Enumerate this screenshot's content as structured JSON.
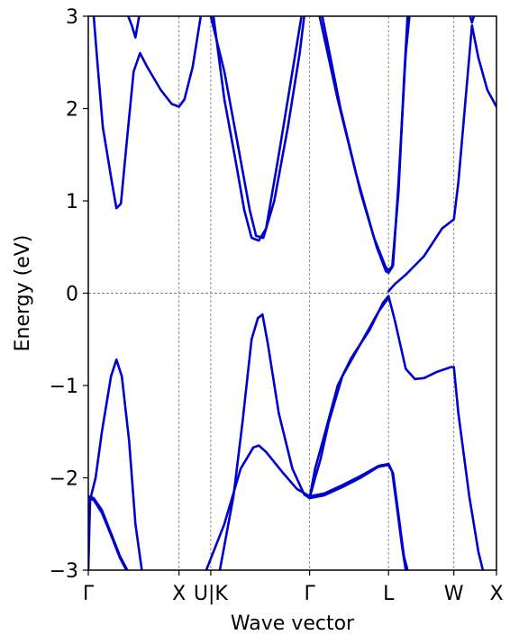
{
  "chart_data": {
    "type": "line",
    "title": "",
    "xlabel": "Wave vector",
    "ylabel": "Energy (eV)",
    "ylim": [
      -3,
      3
    ],
    "yticks": [
      -3,
      -2,
      -1,
      0,
      1,
      2,
      3
    ],
    "ytick_labels": [
      "−3",
      "−2",
      "−1",
      "0",
      "1",
      "2",
      "3"
    ],
    "xlim": [
      0,
      4.5
    ],
    "xticks": [
      {
        "label": "Γ",
        "x": 0.0
      },
      {
        "label": "X",
        "x": 1.0
      },
      {
        "label": "U|K",
        "x": 1.35
      },
      {
        "label": "Γ",
        "x": 2.44
      },
      {
        "label": "L",
        "x": 3.31
      },
      {
        "label": "W",
        "x": 4.03
      },
      {
        "label": "X",
        "x": 4.5
      }
    ],
    "fermi_level": 0,
    "grid": "vertical dashed lines at high-symmetry points",
    "line_color": "#0000cc",
    "guide_color": "#808080",
    "series": [
      {
        "points": [
          [
            0.0,
            -3.0
          ],
          [
            0.02,
            -2.24
          ],
          [
            0.08,
            -2.0
          ],
          [
            0.15,
            -1.5
          ],
          [
            0.25,
            -0.9
          ],
          [
            0.31,
            -0.72
          ],
          [
            0.37,
            -0.9
          ],
          [
            0.45,
            -1.6
          ],
          [
            0.52,
            -2.5
          ],
          [
            0.59,
            -3.0
          ]
        ]
      },
      {
        "points": [
          [
            0.0,
            -2.2
          ],
          [
            0.06,
            -2.22
          ],
          [
            0.15,
            -2.35
          ],
          [
            0.25,
            -2.6
          ],
          [
            0.35,
            -2.85
          ],
          [
            0.43,
            -3.0
          ]
        ]
      },
      {
        "points": [
          [
            0.0,
            -2.22
          ],
          [
            0.06,
            -2.24
          ],
          [
            0.15,
            -2.38
          ],
          [
            0.25,
            -2.62
          ],
          [
            0.35,
            -2.87
          ],
          [
            0.42,
            -3.0
          ]
        ]
      },
      {
        "points": [
          [
            0.06,
            3.0
          ],
          [
            0.1,
            2.5
          ],
          [
            0.16,
            1.8
          ],
          [
            0.26,
            1.2
          ],
          [
            0.31,
            0.92
          ],
          [
            0.36,
            0.97
          ],
          [
            0.42,
            1.6
          ],
          [
            0.5,
            2.4
          ],
          [
            0.57,
            2.6
          ],
          [
            0.65,
            2.45
          ],
          [
            0.8,
            2.2
          ],
          [
            0.92,
            2.05
          ],
          [
            1.0,
            2.02
          ],
          [
            1.06,
            2.1
          ],
          [
            1.15,
            2.45
          ],
          [
            1.24,
            3.0
          ]
        ]
      },
      {
        "points": [
          [
            0.44,
            3.0
          ],
          [
            0.48,
            2.9
          ],
          [
            0.52,
            2.77
          ],
          [
            0.56,
            3.0
          ]
        ]
      },
      {
        "points": [
          [
            1.3,
            -3.0
          ],
          [
            1.5,
            -2.5
          ],
          [
            1.68,
            -1.9
          ],
          [
            1.82,
            -1.67
          ],
          [
            1.88,
            -1.65
          ],
          [
            1.96,
            -1.72
          ],
          [
            2.15,
            -1.95
          ],
          [
            2.3,
            -2.12
          ],
          [
            2.44,
            -2.2
          ]
        ]
      },
      {
        "points": [
          [
            1.45,
            -3.0
          ],
          [
            1.6,
            -2.2
          ],
          [
            1.7,
            -1.4
          ],
          [
            1.8,
            -0.5
          ],
          [
            1.87,
            -0.27
          ],
          [
            1.92,
            -0.23
          ],
          [
            1.98,
            -0.55
          ],
          [
            2.1,
            -1.3
          ],
          [
            2.25,
            -1.9
          ],
          [
            2.38,
            -2.18
          ],
          [
            2.44,
            -2.22
          ]
        ]
      },
      {
        "points": [
          [
            1.35,
            3.0
          ],
          [
            1.5,
            2.4
          ],
          [
            1.65,
            1.6
          ],
          [
            1.78,
            0.9
          ],
          [
            1.85,
            0.62
          ],
          [
            1.93,
            0.6
          ],
          [
            2.05,
            1.0
          ],
          [
            2.2,
            1.8
          ],
          [
            2.33,
            2.6
          ],
          [
            2.38,
            3.0
          ]
        ]
      },
      {
        "points": [
          [
            1.38,
            3.0
          ],
          [
            1.5,
            2.1
          ],
          [
            1.63,
            1.4
          ],
          [
            1.72,
            0.9
          ],
          [
            1.8,
            0.6
          ],
          [
            1.88,
            0.57
          ],
          [
            1.96,
            0.7
          ],
          [
            2.1,
            1.5
          ],
          [
            2.25,
            2.4
          ],
          [
            2.35,
            3.0
          ]
        ]
      },
      {
        "points": [
          [
            2.44,
            -2.22
          ],
          [
            2.6,
            -2.19
          ],
          [
            2.8,
            -2.1
          ],
          [
            3.0,
            -2.0
          ],
          [
            3.2,
            -1.88
          ],
          [
            3.31,
            -1.86
          ],
          [
            3.36,
            -1.95
          ],
          [
            3.42,
            -2.4
          ],
          [
            3.48,
            -2.85
          ],
          [
            3.52,
            -3.0
          ]
        ]
      },
      {
        "points": [
          [
            2.44,
            -2.2
          ],
          [
            2.6,
            -2.17
          ],
          [
            2.8,
            -2.08
          ],
          [
            3.0,
            -1.98
          ],
          [
            3.2,
            -1.87
          ],
          [
            3.31,
            -1.85
          ],
          [
            3.35,
            -1.93
          ],
          [
            3.4,
            -2.3
          ],
          [
            3.46,
            -2.75
          ],
          [
            3.5,
            -3.0
          ]
        ]
      },
      {
        "points": [
          [
            2.44,
            -2.22
          ],
          [
            2.5,
            -1.9
          ],
          [
            2.6,
            -1.55
          ],
          [
            2.75,
            -1.0
          ],
          [
            2.9,
            -0.7
          ],
          [
            3.1,
            -0.4
          ],
          [
            3.25,
            -0.1
          ],
          [
            3.31,
            -0.03
          ],
          [
            3.38,
            -0.3
          ],
          [
            3.5,
            -0.82
          ],
          [
            3.6,
            -0.93
          ],
          [
            3.7,
            -0.92
          ],
          [
            3.85,
            -0.85
          ],
          [
            4.0,
            -0.8
          ],
          [
            4.03,
            -0.8
          ],
          [
            4.08,
            -1.3
          ],
          [
            4.2,
            -2.2
          ],
          [
            4.3,
            -2.8
          ],
          [
            4.35,
            -3.0
          ]
        ]
      },
      {
        "points": [
          [
            2.44,
            -2.22
          ],
          [
            2.5,
            -2.0
          ],
          [
            2.56,
            -1.8
          ],
          [
            2.65,
            -1.4
          ],
          [
            2.8,
            -0.9
          ],
          [
            3.0,
            -0.55
          ],
          [
            3.2,
            -0.2
          ],
          [
            3.31,
            -0.05
          ]
        ]
      },
      {
        "points": [
          [
            2.55,
            3.0
          ],
          [
            2.75,
            2.1
          ],
          [
            2.95,
            1.3
          ],
          [
            3.15,
            0.6
          ],
          [
            3.28,
            0.28
          ],
          [
            3.31,
            0.25
          ],
          [
            3.36,
            0.3
          ],
          [
            3.42,
            1.2
          ],
          [
            3.5,
            2.6
          ],
          [
            3.54,
            3.0
          ]
        ]
      },
      {
        "points": [
          [
            2.58,
            3.0
          ],
          [
            2.78,
            2.0
          ],
          [
            3.0,
            1.1
          ],
          [
            3.18,
            0.5
          ],
          [
            3.28,
            0.24
          ],
          [
            3.31,
            0.22
          ],
          [
            3.35,
            0.28
          ],
          [
            3.42,
            1.1
          ],
          [
            3.48,
            2.3
          ],
          [
            3.52,
            3.0
          ]
        ]
      },
      {
        "points": [
          [
            3.31,
            0.02
          ],
          [
            3.38,
            0.1
          ],
          [
            3.5,
            0.2
          ],
          [
            3.7,
            0.4
          ],
          [
            3.9,
            0.7
          ],
          [
            4.03,
            0.8
          ],
          [
            4.08,
            1.2
          ],
          [
            4.15,
            2.0
          ],
          [
            4.23,
            2.9
          ],
          [
            4.3,
            2.55
          ],
          [
            4.4,
            2.2
          ],
          [
            4.5,
            2.02
          ]
        ]
      },
      {
        "points": [
          [
            4.21,
            3.0
          ],
          [
            4.23,
            2.93
          ],
          [
            4.25,
            3.0
          ]
        ]
      }
    ]
  }
}
